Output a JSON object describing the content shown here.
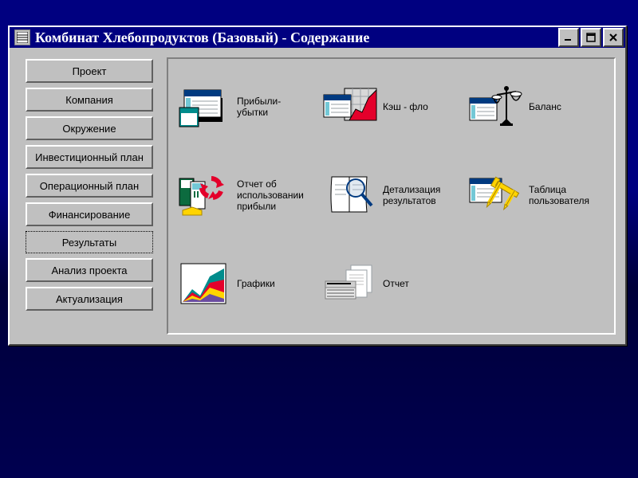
{
  "window": {
    "title": "Комбинат Хлебопродуктов (Базовый) - Содержание",
    "chrome": {
      "background": "#c0c0c0",
      "titlebar_bg": "#000080",
      "titlebar_fg": "#ffffff",
      "button_highlight": "#ffffff",
      "button_shadow": "#606060"
    }
  },
  "sidebar": {
    "selected_index": 6,
    "items": [
      {
        "label": "Проект"
      },
      {
        "label": "Компания"
      },
      {
        "label": "Окружение"
      },
      {
        "label": "Инвестиционный план"
      },
      {
        "label": "Операционный план"
      },
      {
        "label": "Финансирование"
      },
      {
        "label": "Результаты"
      },
      {
        "label": "Анализ проекта"
      },
      {
        "label": "Актуализация"
      }
    ]
  },
  "content": {
    "items": [
      {
        "icon": "profit-loss-icon",
        "label": "Прибыли-\nубытки"
      },
      {
        "icon": "cashflow-icon",
        "label": "Кэш - фло"
      },
      {
        "icon": "balance-icon",
        "label": "Баланс"
      },
      {
        "icon": "profit-use-icon",
        "label": "Отчет об\nиспользовании\nприбыли"
      },
      {
        "icon": "details-icon",
        "label": "Детализация\nрезультатов"
      },
      {
        "icon": "user-table-icon",
        "label": "Таблица\nпользователя"
      },
      {
        "icon": "charts-icon",
        "label": "Графики"
      },
      {
        "icon": "report-icon",
        "label": "Отчет"
      }
    ]
  },
  "palette": {
    "red": "#e4002b",
    "yellow": "#ffd400",
    "teal": "#008c8c",
    "navy": "#003a80",
    "cyan": "#73c8d6",
    "green": "#0c6b3f",
    "gray": "#9aa0a6",
    "lightgray": "#d8d8d8",
    "black": "#000000",
    "white": "#ffffff"
  }
}
